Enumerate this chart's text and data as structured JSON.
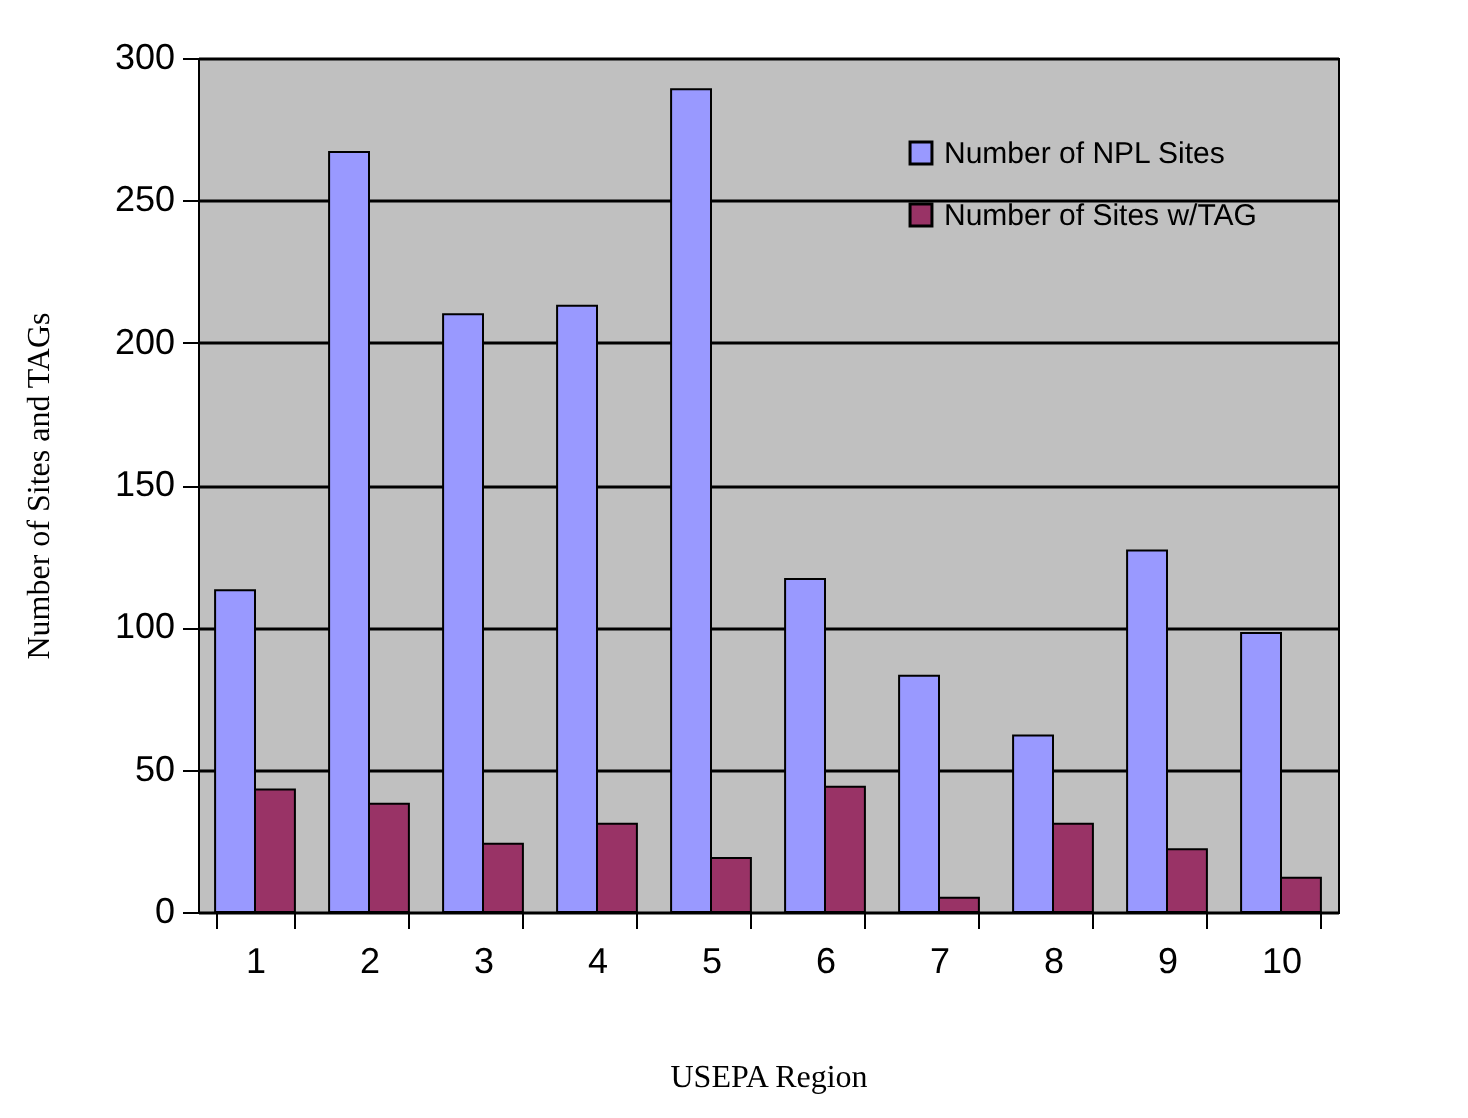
{
  "chart_data": {
    "type": "bar",
    "xlabel": "USEPA Region",
    "ylabel": "Number of Sites and TAGs",
    "categories": [
      "1",
      "2",
      "3",
      "4",
      "5",
      "6",
      "7",
      "8",
      "9",
      "10"
    ],
    "series": [
      {
        "name": "Number of NPL Sites",
        "color": "#9999ff",
        "values": [
          113,
          267,
          210,
          213,
          289,
          117,
          83,
          62,
          127,
          98
        ]
      },
      {
        "name": "Number of Sites w/TAG",
        "color": "#993366",
        "values": [
          43,
          38,
          24,
          31,
          19,
          44,
          5,
          31,
          22,
          12
        ]
      }
    ],
    "ylim": [
      0,
      300
    ],
    "yticks": [
      0,
      50,
      100,
      150,
      200,
      250,
      300
    ],
    "grid": "y",
    "legend": "top right"
  }
}
